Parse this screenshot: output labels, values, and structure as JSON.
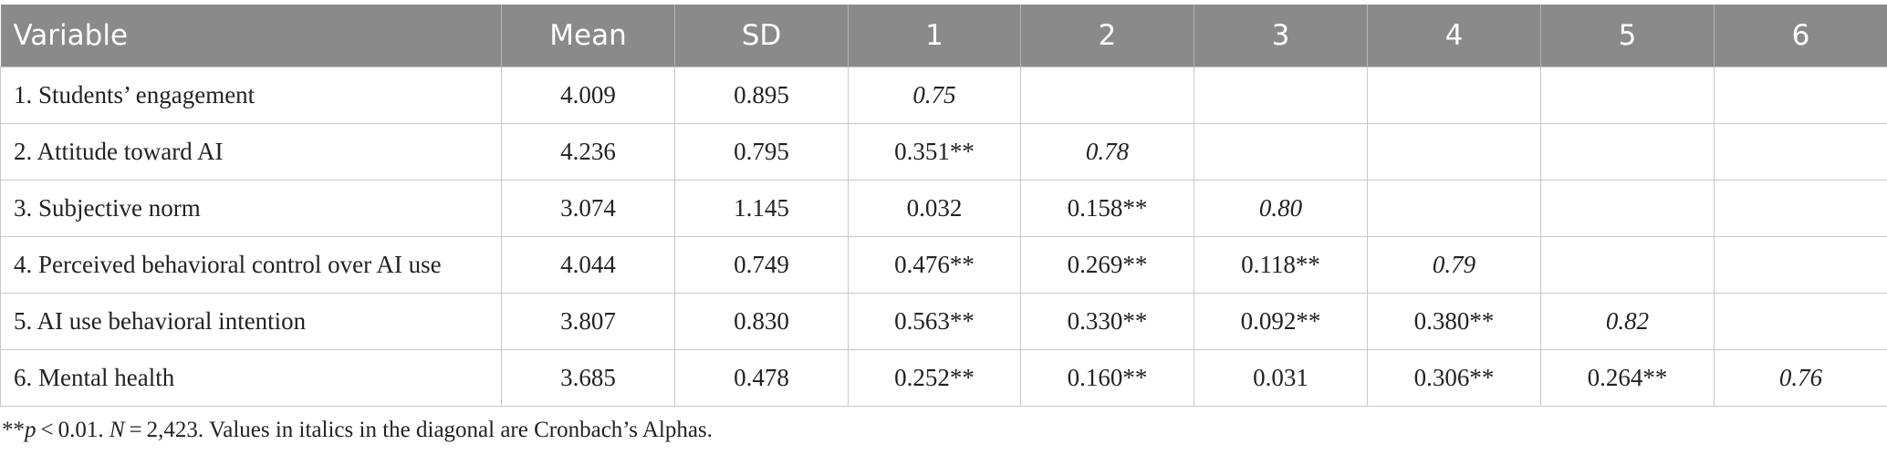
{
  "table": {
    "header": [
      "Variable",
      "Mean",
      "SD",
      "1",
      "2",
      "3",
      "4",
      "5",
      "6"
    ],
    "rows": [
      [
        "1. Students’ engagement",
        "4.009",
        "0.895",
        "0.75",
        null,
        null,
        null,
        null,
        null
      ],
      [
        "2. Attitude toward AI",
        "4.236",
        "0.795",
        "0.351**",
        "0.78",
        null,
        null,
        null,
        null
      ],
      [
        "3. Subjective norm",
        "3.074",
        "1.145",
        "0.032",
        "0.158**",
        "0.80",
        null,
        null,
        null
      ],
      [
        "4. Perceived behavioral control over AI use",
        "4.044",
        "0.749",
        "0.476**",
        "0.269**",
        "0.118**",
        "0.79",
        null,
        null
      ],
      [
        "5. AI use behavioral intention",
        "3.807",
        "0.830",
        "0.563**",
        "0.330**",
        "0.092**",
        "0.380**",
        "0.82",
        null
      ],
      [
        "6. Mental health",
        "3.685",
        "0.478",
        "0.252**",
        "0.160**",
        "0.031",
        "0.306**",
        "0.264**",
        "0.76"
      ]
    ]
  },
  "footnote": [
    {
      "text": "**"
    },
    {
      "text": "p",
      "italic": true
    },
    {
      "text": " < 0.01. "
    },
    {
      "text": "N",
      "italic": true
    },
    {
      "text": " = 2,423. Values in italics in the diagonal are Cronbach’s Alphas."
    }
  ]
}
